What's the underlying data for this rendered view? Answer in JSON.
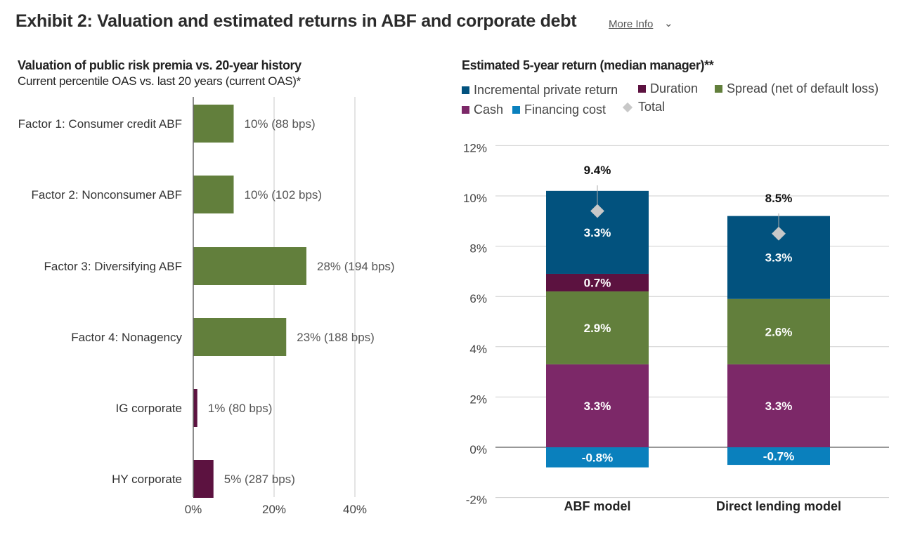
{
  "header": {
    "title": "Exhibit 2: Valuation and estimated returns in ABF and corporate debt",
    "more_info": "More Info",
    "chevron_icon": "chevron-down-icon"
  },
  "chart_data": [
    {
      "type": "bar",
      "orientation": "horizontal",
      "title": "Valuation of public risk premia vs. 20-year history",
      "subtitle": "Current percentile OAS vs. last 20 years (current OAS)*",
      "categories": [
        "Factor 1: Consumer credit ABF",
        "Factor 2: Nonconsumer ABF",
        "Factor 3: Diversifying ABF",
        "Factor 4: Nonagency",
        "IG corporate",
        "HY corporate"
      ],
      "values": [
        10,
        10,
        28,
        23,
        1,
        5
      ],
      "data_labels": [
        "10% (88 bps)",
        "10% (102 bps)",
        "28% (194 bps)",
        "23% (188 bps)",
        "1% (80 bps)",
        "5% (287 bps)"
      ],
      "colors": [
        "#627f3c",
        "#627f3c",
        "#627f3c",
        "#627f3c",
        "#5c1240",
        "#5c1240"
      ],
      "xlim": [
        0,
        60
      ],
      "xticks": [
        0,
        20,
        40
      ],
      "xtick_labels": [
        "0%",
        "20%",
        "40%"
      ],
      "grid": true
    },
    {
      "type": "bar",
      "stacked": true,
      "title": "Estimated 5-year return (median manager)**",
      "categories": [
        "ABF model",
        "Direct lending model"
      ],
      "series": [
        {
          "name": "Financing cost",
          "color": "#0a80bd",
          "values": [
            -0.8,
            -0.7
          ],
          "labels": [
            "-0.8%",
            "-0.7%"
          ]
        },
        {
          "name": "Cash",
          "color": "#7c2868",
          "values": [
            3.3,
            3.3
          ],
          "labels": [
            "3.3%",
            "3.3%"
          ]
        },
        {
          "name": "Spread (net of default loss)",
          "color": "#627f3c",
          "values": [
            2.9,
            2.6
          ],
          "labels": [
            "2.9%",
            "2.6%"
          ]
        },
        {
          "name": "Duration",
          "color": "#5c1240",
          "values": [
            0.7,
            0
          ],
          "labels": [
            "0.7%",
            ""
          ]
        },
        {
          "name": "Incremental private return",
          "color": "#02527e",
          "values": [
            3.3,
            3.3
          ],
          "labels": [
            "3.3%",
            "3.3%"
          ]
        }
      ],
      "total": {
        "name": "Total",
        "color": "#c8c8c8",
        "values": [
          9.4,
          8.5
        ],
        "labels": [
          "9.4%",
          "8.5%"
        ]
      },
      "legend": [
        {
          "name": "Incremental private return",
          "color": "#02527e"
        },
        {
          "name": "Duration",
          "color": "#5c1240"
        },
        {
          "name": "Spread (net of default loss)",
          "color": "#627f3c"
        },
        {
          "name": "Cash",
          "color": "#7c2868"
        },
        {
          "name": "Financing cost",
          "color": "#0a80bd"
        },
        {
          "name": "Total",
          "color": "#c8c8c8"
        }
      ],
      "legend_position": "top-left",
      "ylim": [
        -2,
        12
      ],
      "yticks": [
        -2,
        0,
        2,
        4,
        6,
        8,
        10,
        12
      ],
      "ytick_labels": [
        "-2%",
        "0%",
        "2%",
        "4%",
        "6%",
        "8%",
        "10%",
        "12%"
      ],
      "grid": true
    }
  ]
}
